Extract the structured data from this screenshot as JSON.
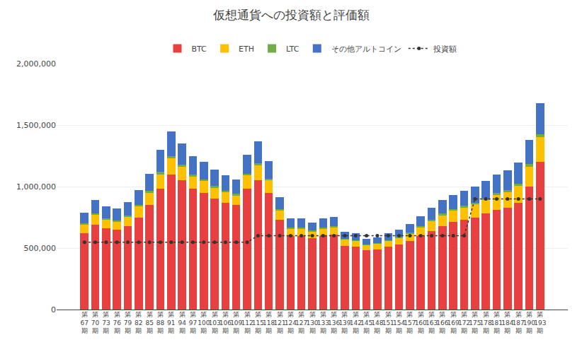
{
  "chart_data": {
    "type": "bar",
    "title": "仮想通貨への投資額と評価額",
    "stacked": true,
    "grid": true,
    "legend": "top",
    "categories": [
      "第\n67\n期",
      "第\n70\n期",
      "第\n73\n期",
      "第\n76\n期",
      "第\n79\n期",
      "第\n82\n期",
      "第\n85\n期",
      "第\n88\n期",
      "第\n91\n期",
      "第\n94\n期",
      "第\n97\n期",
      "第\n100\n期",
      "第\n103\n期",
      "第\n106\n期",
      "第\n109\n期",
      "第\n112\n期",
      "第\n115\n期",
      "第\n118\n期",
      "第\n121\n期",
      "第\n124\n期",
      "第\n127\n期",
      "第\n130\n期",
      "第\n133\n期",
      "第\n136\n期",
      "第\n139\n期",
      "第\n142\n期",
      "第\n145\n期",
      "第\n148\n期",
      "第\n151\n期",
      "第\n154\n期",
      "第\n157\n期",
      "第\n160\n期",
      "第\n163\n期",
      "第\n166\n期",
      "第\n169\n期",
      "第\n172\n期",
      "第\n175\n期",
      "第\n178\n期",
      "第\n181\n期",
      "第\n184\n期",
      "第\n187\n期",
      "第\n190\n期",
      "第\n193\n期"
    ],
    "series": [
      {
        "name": "BTC",
        "color": "#E84040",
        "values": [
          620000,
          690000,
          660000,
          650000,
          680000,
          750000,
          850000,
          980000,
          1100000,
          1050000,
          980000,
          950000,
          900000,
          870000,
          850000,
          980000,
          1050000,
          950000,
          730000,
          600000,
          600000,
          580000,
          600000,
          610000,
          520000,
          510000,
          480000,
          490000,
          510000,
          530000,
          560000,
          600000,
          640000,
          680000,
          710000,
          730000,
          750000,
          780000,
          810000,
          830000,
          870000,
          1000000,
          1200000
        ]
      },
      {
        "name": "ETH",
        "color": "#FFC000",
        "values": [
          70000,
          80000,
          70000,
          65000,
          75000,
          90000,
          100000,
          120000,
          130000,
          110000,
          100000,
          95000,
          90000,
          85000,
          80000,
          110000,
          120000,
          100000,
          75000,
          60000,
          60000,
          55000,
          60000,
          60000,
          50000,
          50000,
          45000,
          45000,
          50000,
          55000,
          60000,
          70000,
          80000,
          90000,
          95000,
          100000,
          105000,
          110000,
          120000,
          125000,
          135000,
          160000,
          200000
        ]
      },
      {
        "name": "LTC",
        "color": "#70AD47",
        "values": [
          10000,
          12000,
          10000,
          10000,
          11000,
          13000,
          15000,
          18000,
          20000,
          17000,
          15000,
          14000,
          13000,
          12000,
          11000,
          15000,
          18000,
          14000,
          10000,
          8000,
          8000,
          7000,
          8000,
          8000,
          6000,
          6000,
          5000,
          5000,
          6000,
          7000,
          8000,
          9000,
          10000,
          11000,
          12000,
          13000,
          14000,
          15000,
          16000,
          17000,
          18000,
          22000,
          28000
        ]
      },
      {
        "name": "その他アルトコイン",
        "color": "#4472C4",
        "values": [
          90000,
          110000,
          100000,
          95000,
          105000,
          120000,
          140000,
          180000,
          200000,
          175000,
          155000,
          145000,
          135000,
          125000,
          115000,
          155000,
          180000,
          145000,
          100000,
          75000,
          75000,
          65000,
          75000,
          75000,
          55000,
          55000,
          45000,
          45000,
          55000,
          60000,
          65000,
          80000,
          95000,
          110000,
          115000,
          120000,
          130000,
          140000,
          150000,
          160000,
          170000,
          200000,
          250000
        ]
      },
      {
        "name": "投資額",
        "type": "line",
        "color": "#333333",
        "marker": "circle",
        "line_style": "dotted",
        "values": [
          548000,
          548000,
          548000,
          548000,
          548000,
          548000,
          548000,
          548000,
          548000,
          548000,
          548000,
          548000,
          548000,
          548000,
          548000,
          548000,
          600000,
          600000,
          600000,
          600000,
          600000,
          600000,
          600000,
          600000,
          600000,
          600000,
          600000,
          600000,
          600000,
          600000,
          600000,
          600000,
          600000,
          600000,
          600000,
          600000,
          900000,
          900000,
          900000,
          900000,
          900000,
          900000,
          900000
        ]
      }
    ],
    "ylim": [
      0,
      2000000
    ],
    "yticks": [
      0,
      {
        "value": 500000,
        "label": "500,000"
      },
      {
        "value": 1000000,
        "label": "1,000,000"
      },
      {
        "value": 1500000,
        "label": "1,500,000"
      },
      {
        "value": 2000000,
        "label": "2,000,000"
      }
    ]
  }
}
